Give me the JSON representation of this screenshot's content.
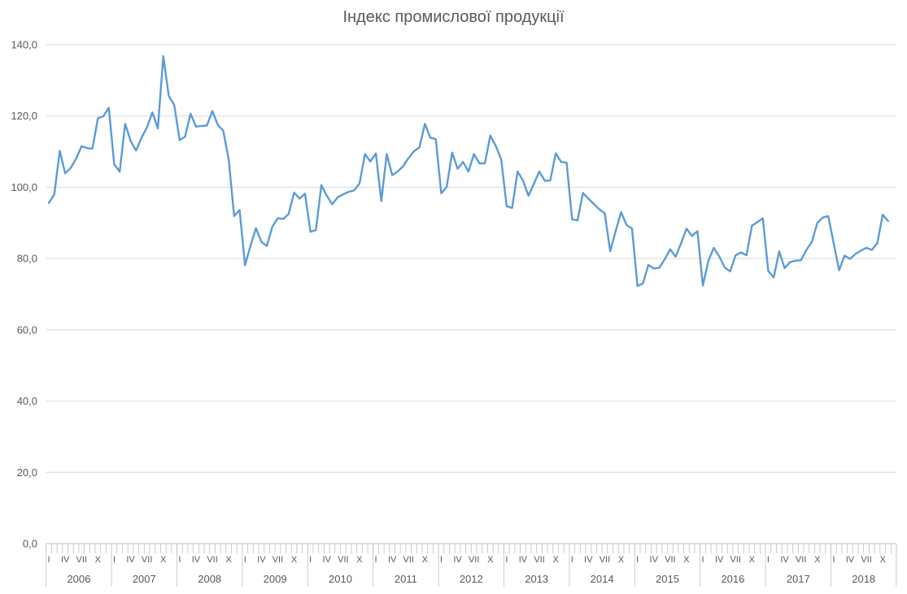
{
  "colors": {
    "line": "#5B9BD5",
    "gridline": "#D9D9D9",
    "axis": "#BFBFBF",
    "text": "#595959"
  },
  "chart_data": {
    "type": "line",
    "title": "Індекс промислової продукції",
    "xlabel": "",
    "ylabel": "",
    "ylim": [
      0,
      140
    ],
    "ytick_step": 20,
    "ytick_labels": [
      "0,0",
      "20,0",
      "40,0",
      "60,0",
      "80,0",
      "100,0",
      "120,0",
      "140,0"
    ],
    "month_tick_pattern": [
      "I",
      "IV",
      "VII",
      "X"
    ],
    "month_tick_positions": [
      1,
      4,
      7,
      10
    ],
    "years": [
      "2006",
      "2007",
      "2008",
      "2009",
      "2010",
      "2011",
      "2012",
      "2013",
      "2014",
      "2015",
      "2016",
      "2017",
      "2018"
    ],
    "start": "2006-01",
    "end": "2018-11",
    "grid": true,
    "legend": false,
    "series": [
      {
        "name": "Індекс промислової продукції",
        "values": [
          95.6,
          98.0,
          110.2,
          103.9,
          105.4,
          108.0,
          111.5,
          111.0,
          110.8,
          119.4,
          119.9,
          122.3,
          106.4,
          104.4,
          117.8,
          113.0,
          110.3,
          113.9,
          116.8,
          121.0,
          116.5,
          136.8,
          125.6,
          123.1,
          113.2,
          114.2,
          120.6,
          117.0,
          117.2,
          117.3,
          121.4,
          117.5,
          115.8,
          107.8,
          91.9,
          93.6,
          78.1,
          83.6,
          88.5,
          84.7,
          83.5,
          88.9,
          91.3,
          91.1,
          92.5,
          98.5,
          96.8,
          98.2,
          87.5,
          88.0,
          100.6,
          97.6,
          95.2,
          97.2,
          98.0,
          98.7,
          99.1,
          101.0,
          109.3,
          107.2,
          109.5,
          96.1,
          109.3,
          103.4,
          104.4,
          105.9,
          108.2,
          110.1,
          111.2,
          117.8,
          113.9,
          113.5,
          98.3,
          100.1,
          109.7,
          105.2,
          107.1,
          104.4,
          109.3,
          106.7,
          106.7,
          114.5,
          111.6,
          107.8,
          94.7,
          94.2,
          104.4,
          101.9,
          97.6,
          101.0,
          104.4,
          101.8,
          101.9,
          109.5,
          107.1,
          106.9,
          91.0,
          90.7,
          98.4,
          96.8,
          95.3,
          93.8,
          92.7,
          82.0,
          87.7,
          93.0,
          89.4,
          88.4,
          72.3,
          73.0,
          78.2,
          77.2,
          77.4,
          79.8,
          82.6,
          80.5,
          84.3,
          88.4,
          86.3,
          87.7,
          72.4,
          79.3,
          83.0,
          80.6,
          77.5,
          76.4,
          80.9,
          81.7,
          80.9,
          89.2,
          90.2,
          91.3,
          76.5,
          74.7,
          82.0,
          77.3,
          79.0,
          79.4,
          79.5,
          82.4,
          84.7,
          90.0,
          91.5,
          91.9,
          84.3,
          76.7,
          80.8,
          79.9,
          81.3,
          82.2,
          83.0,
          82.4,
          84.3,
          92.3,
          90.5
        ]
      }
    ]
  }
}
